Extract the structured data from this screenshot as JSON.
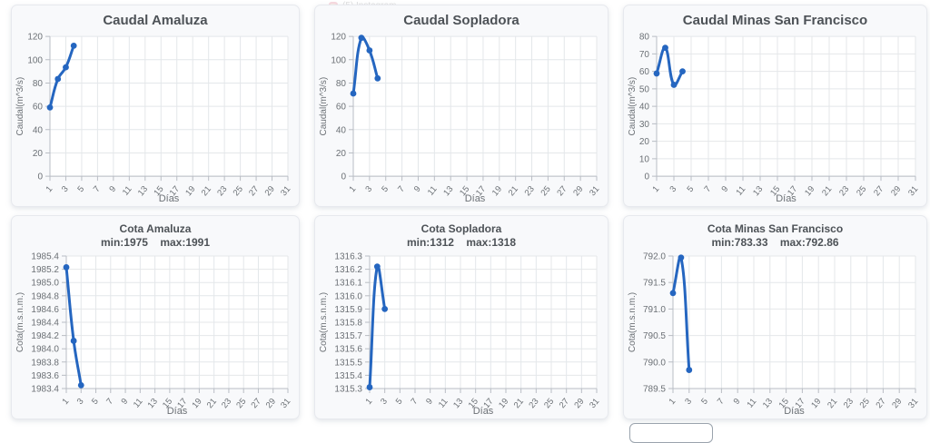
{
  "window": {
    "background_tab_label": "(5) Instagram"
  },
  "colors": {
    "line": "#2566c0",
    "point": "#2566c0",
    "card_background": "#f8f9fb",
    "plot_background": "#ffffff",
    "grid": "#e4e7ea",
    "axis_border": "#b9bdc4",
    "tick_text": "#6b7075",
    "title_text": "#4d5257"
  },
  "xaxis": {
    "label": "Días",
    "min": 1,
    "max": 31,
    "tick_labels": [
      "1",
      "3",
      "5",
      "7",
      "9",
      "11",
      "13",
      "15",
      "17",
      "19",
      "21",
      "23",
      "25",
      "27",
      "29",
      "31"
    ]
  },
  "chart_data": [
    {
      "type": "line",
      "title": "Caudal Amaluza",
      "subtitle": "",
      "ylabel": "Caudal(m^3/s)",
      "xlabel": "Días",
      "x": [
        1,
        2,
        3,
        4
      ],
      "values": [
        59,
        83.5,
        93.5,
        112
      ],
      "ylim": [
        0,
        120
      ],
      "ystep": 20,
      "ydecimals": 0,
      "grid": true
    },
    {
      "type": "line",
      "title": "Caudal Sopladora",
      "subtitle": "",
      "ylabel": "Caudal(m^3/s)",
      "xlabel": "Días",
      "x": [
        1,
        2,
        3,
        4
      ],
      "values": [
        71,
        118.8,
        108,
        84
      ],
      "ylim": [
        0,
        120
      ],
      "ystep": 20,
      "ydecimals": 0,
      "grid": true
    },
    {
      "type": "line",
      "title": "Caudal Minas San Francisco",
      "subtitle": "",
      "ylabel": "Caudal(m^3/s)",
      "xlabel": "Días",
      "x": [
        1,
        2,
        3,
        4
      ],
      "values": [
        58.8,
        73.5,
        52.3,
        60
      ],
      "ylim": [
        0,
        80
      ],
      "ystep": 10,
      "ydecimals": 0,
      "grid": true
    },
    {
      "type": "line",
      "title": "Cota Amaluza",
      "subtitle": "min:1975    max:1991",
      "ylabel": "Cota(m.s.n.m.)",
      "xlabel": "Días",
      "x": [
        1,
        2,
        3
      ],
      "values": [
        1985.23,
        1984.12,
        1983.45
      ],
      "ylim": [
        1983.4,
        1985.4
      ],
      "ystep": 0.2,
      "ydecimals": 1,
      "grid": true
    },
    {
      "type": "line",
      "title": "Cota Sopladora",
      "subtitle": "min:1312    max:1318",
      "ylabel": "Cota(m.s.n.m.)",
      "xlabel": "Días",
      "x": [
        1,
        2,
        3
      ],
      "values": [
        1315.31,
        1316.22,
        1315.9
      ],
      "ylim": [
        1315.3,
        1316.3
      ],
      "ystep": 0.1,
      "ydecimals": 1,
      "grid": true
    },
    {
      "type": "line",
      "title": "Cota Minas San Francisco",
      "subtitle": "min:783.33    max:792.86",
      "ylabel": "Cota(m.s.n.m.)",
      "xlabel": "Días",
      "x": [
        1,
        2,
        3
      ],
      "values": [
        791.3,
        791.97,
        789.85
      ],
      "ylim": [
        789.5,
        792.0
      ],
      "ystep": 0.5,
      "ydecimals": 1,
      "grid": true
    }
  ]
}
